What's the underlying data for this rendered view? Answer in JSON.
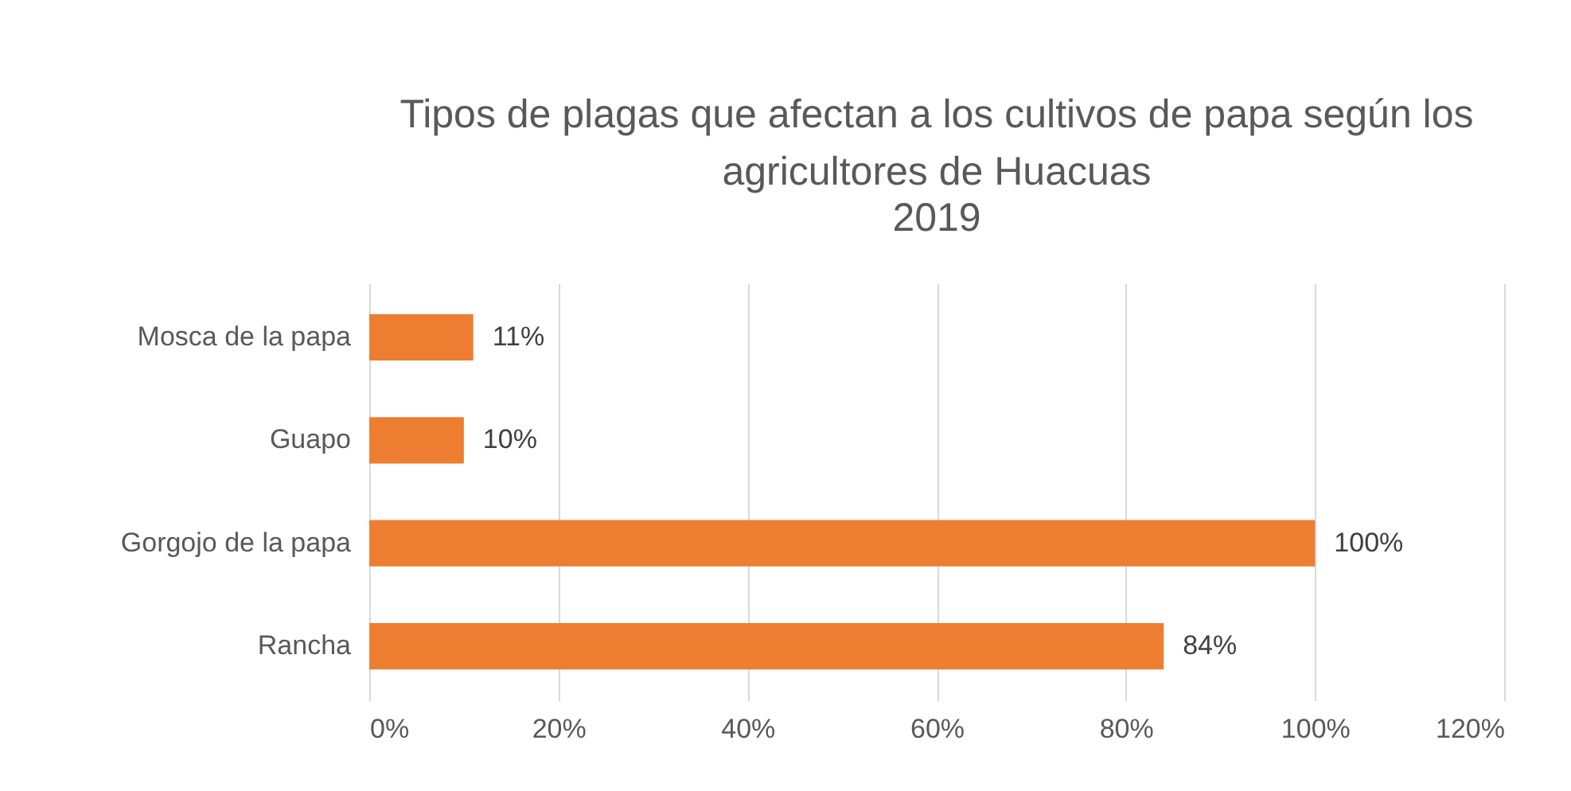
{
  "chart_data": {
    "type": "bar",
    "orientation": "horizontal",
    "title": "Tipos de plagas que afectan a los cultivos de papa según los agricultores de Huacuas",
    "subtitle": "2019",
    "categories": [
      "Mosca de la papa",
      "Guapo",
      "Gorgojo de la papa",
      "Rancha"
    ],
    "values": [
      11,
      10,
      100,
      84
    ],
    "color": "#ed7d31",
    "value_labels": [
      "11%",
      "10%",
      "100%",
      "84%"
    ],
    "xlim": [
      0,
      120
    ],
    "xticks": [
      {
        "value": 0,
        "label": "0%"
      },
      {
        "value": 20,
        "label": "20%"
      },
      {
        "value": 40,
        "label": "40%"
      },
      {
        "value": 60,
        "label": "60%"
      },
      {
        "value": 80,
        "label": "80%"
      },
      {
        "value": 100,
        "label": "100%"
      },
      {
        "value": 120,
        "label": "120%"
      }
    ],
    "grid": "x"
  }
}
